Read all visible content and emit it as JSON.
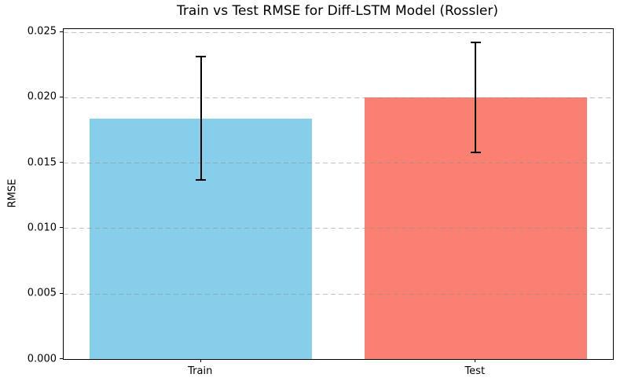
{
  "chart_data": {
    "type": "bar",
    "title": "Train vs Test RMSE for Diff-LSTM Model (Rossler)",
    "xlabel": "",
    "ylabel": "RMSE",
    "categories": [
      "Train",
      "Test"
    ],
    "values": [
      0.0184,
      0.02
    ],
    "errors": [
      0.0047,
      0.0042
    ],
    "bar_colors": [
      "#87CEEB",
      "#FA8072"
    ],
    "yticks": [
      0,
      0.005,
      0.01,
      0.015,
      0.02,
      0.025
    ],
    "ytick_labels": [
      "0.000",
      "0.005",
      "0.010",
      "0.015",
      "0.020",
      "0.025"
    ],
    "ylim": [
      0,
      0.02522
    ],
    "grid": "horizontal-dashed",
    "grid_over_bars": true,
    "legend": "none",
    "colors": {
      "grid": "#c8c8c8",
      "axis": "#000000",
      "error_bar": "#000000",
      "background": "#ffffff",
      "text": "#000000"
    }
  }
}
